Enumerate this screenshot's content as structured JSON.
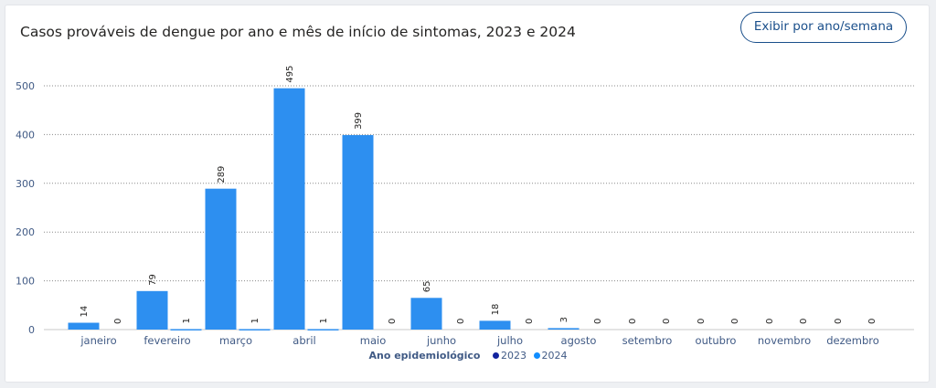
{
  "header": {
    "title": "Casos prováveis de dengue por ano e mês de início de sintomas, 2023 e 2024",
    "button_label": "Exibir por ano/semana"
  },
  "legend": {
    "title": "Ano epidemiológico",
    "items": [
      {
        "label": "2023",
        "color": "#12239e"
      },
      {
        "label": "2024",
        "color": "#118dff"
      }
    ]
  },
  "chart_data": {
    "type": "bar",
    "title": "Casos prováveis de dengue por ano e mês de início de sintomas, 2023 e 2024",
    "xlabel": "",
    "ylabel": "",
    "ylim": [
      0,
      500
    ],
    "yticks": [
      0,
      100,
      200,
      300,
      400,
      500
    ],
    "grid": true,
    "legend_position": "bottom",
    "categories": [
      "janeiro",
      "fevereiro",
      "março",
      "abril",
      "maio",
      "junho",
      "julho",
      "agosto",
      "setembro",
      "outubro",
      "novembro",
      "dezembro"
    ],
    "series": [
      {
        "name": "2023",
        "color": "#12239e",
        "values": [
          0,
          0,
          0,
          0,
          0,
          0,
          0,
          0,
          0,
          0,
          0,
          0
        ]
      },
      {
        "name": "2024",
        "color": "#118dff",
        "values": [
          14,
          79,
          289,
          495,
          399,
          65,
          18,
          3,
          0,
          0,
          0,
          0
        ]
      }
    ],
    "data_labels": [
      [
        14,
        0
      ],
      [
        79,
        1
      ],
      [
        289,
        1
      ],
      [
        495,
        1
      ],
      [
        399,
        0
      ],
      [
        65,
        0
      ],
      [
        18,
        0
      ],
      [
        3,
        0
      ],
      [
        0,
        0
      ],
      [
        0,
        0
      ],
      [
        0,
        0
      ],
      [
        0,
        0
      ]
    ]
  }
}
